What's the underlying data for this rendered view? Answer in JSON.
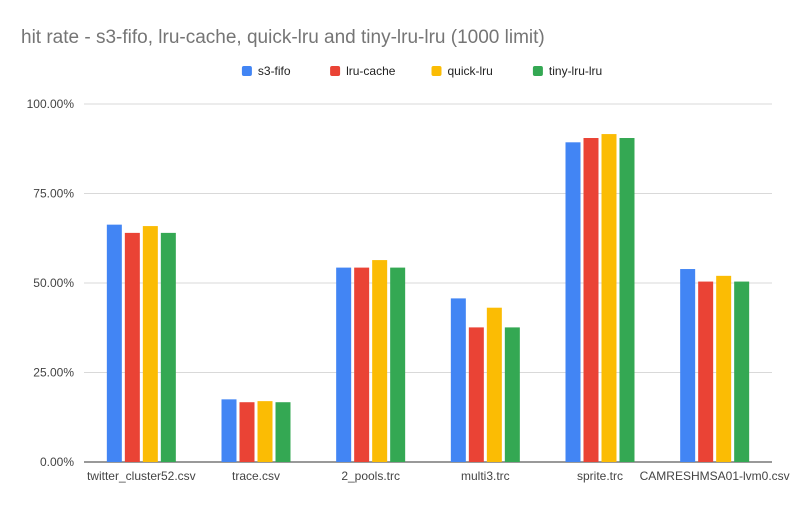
{
  "chart_data": {
    "type": "bar",
    "title": "hit rate - s3-fifo, lru-cache, quick-lru and tiny-lru-lru (1000 limit)",
    "xlabel": "",
    "ylabel": "",
    "categories": [
      "twitter_cluster52.csv",
      "trace.csv",
      "2_pools.trc",
      "multi3.trc",
      "sprite.trc",
      "CAMRESHMSA01-lvm0.csv"
    ],
    "series": [
      {
        "name": "s3-fifo",
        "color": "#4285f4",
        "values": [
          66.3,
          17.5,
          54.3,
          45.7,
          89.3,
          53.9
        ]
      },
      {
        "name": "lru-cache",
        "color": "#ea4335",
        "values": [
          64.0,
          16.7,
          54.3,
          37.6,
          90.5,
          50.4
        ]
      },
      {
        "name": "quick-lru",
        "color": "#fbbc04",
        "values": [
          65.9,
          17.0,
          56.4,
          43.1,
          91.6,
          52.0
        ]
      },
      {
        "name": "tiny-lru-lru",
        "color": "#34a853",
        "values": [
          64.0,
          16.7,
          54.3,
          37.6,
          90.5,
          50.4
        ]
      }
    ],
    "ylim": [
      0,
      100
    ],
    "yticks": [
      "0.00%",
      "25.00%",
      "50.00%",
      "75.00%",
      "100.00%"
    ],
    "grid": true,
    "legend": "top-center"
  }
}
